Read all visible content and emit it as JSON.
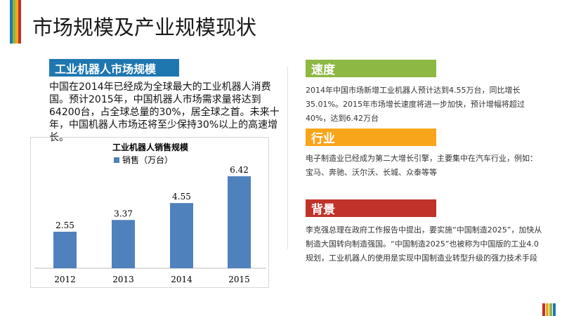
{
  "title": "市场规模及产业规模现状",
  "colors": {
    "blue": "#1f77b0",
    "green": "#8db843",
    "orange": "#f9a51b",
    "red": "#c0322a",
    "bar": "#4f81bd"
  },
  "left": {
    "header": "工业机器人市场规模",
    "text": "中国在2014年已经成为全球最大的工业机器人消费国。预计2015年，中国机器人市场需求量将达到64200台，占全球总量的30%，居全球之首。未来十年，中国机器人市场还将至少保持30%以上的高速增长。"
  },
  "chart_data": {
    "type": "bar",
    "title": "工业机器人销售规模",
    "categories": [
      "2012",
      "2013",
      "2014",
      "2015"
    ],
    "series": [
      {
        "name": "销售（万台）",
        "values": [
          2.55,
          3.37,
          4.55,
          6.42
        ]
      }
    ],
    "legend": "top",
    "ylim": [
      0,
      7
    ],
    "grid": false
  },
  "right": [
    {
      "header": "速度",
      "text": "2014年中国市场新增工业机器人预计达到4.55万台，同比增长35.01%。2015年市场增长速度将进一步加快，预计增幅将超过40%，达到6.42万台"
    },
    {
      "header": "行业",
      "text": "电子制造业已经成为第二大增长引擎，主要集中在汽车行业，例如：宝马、奔驰、沃尔沃、长城、众泰等等"
    },
    {
      "header": "背景",
      "text": "李克强总理在政府工作报告中提出，要实施“中国制造2025”，加快从制造大国转向制造强国。“中国制造2025”也被称为中国版的工业4.0规划，工业机器人的使用是实现中国制造业转型升级的强力技术手段"
    }
  ]
}
